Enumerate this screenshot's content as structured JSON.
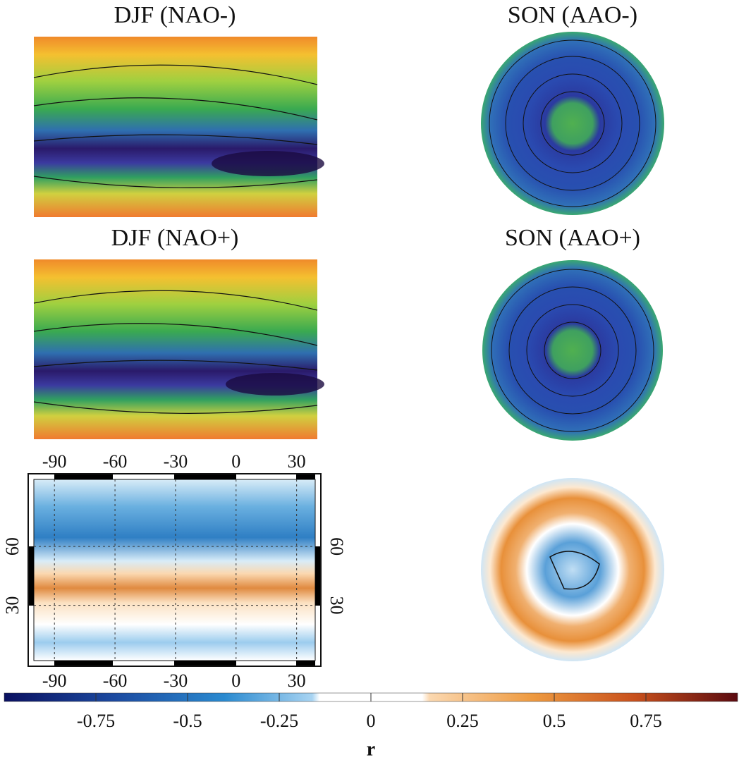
{
  "panels": [
    {
      "title": "DJF (NAO-)"
    },
    {
      "title": "SON (AAO-)"
    },
    {
      "title": "DJF (NAO+)"
    },
    {
      "title": "SON (AAO+)"
    }
  ],
  "difference_map": {
    "xticks": [
      -90,
      -60,
      -30,
      0,
      30
    ],
    "xlim": [
      -103,
      42
    ],
    "yticks": [
      60,
      30
    ],
    "ylim": [
      -1,
      97
    ]
  },
  "colorbar": {
    "clim": [
      -1,
      1
    ],
    "ticks": [
      -0.75,
      -0.5,
      -0.25,
      0,
      0.25,
      0.5,
      0.75
    ],
    "label": "r"
  }
}
